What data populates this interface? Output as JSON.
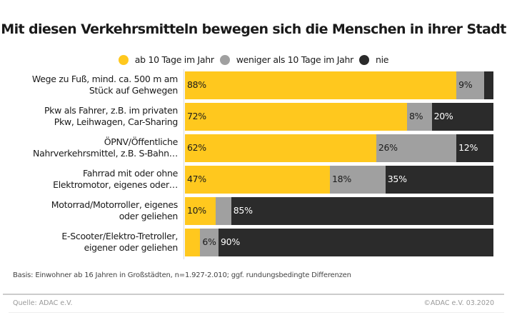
{
  "chart_data": {
    "type": "bar",
    "orientation": "horizontal",
    "stacked": true,
    "title": "Mit diesen Verkehrsmitteln bewegen sich die Menschen in ihrer Stadt",
    "xlabel": "",
    "ylabel": "",
    "xlim": [
      0,
      100
    ],
    "legend_position": "top-center",
    "categories": [
      "Wege zu Fuß, mind. ca. 500 m am Stück auf Gehwegen",
      "Pkw als Fahrer, z.B. im privaten Pkw, Leihwagen, Car-Sharing",
      "ÖPNV/Öffentliche Nahrverkehrsmittel, z.B. S-Bahn…",
      "Fahrrad mit oder ohne Elektromotor, eigenes oder…",
      "Motorrad/Motorroller, eigenes oder geliehen",
      "E-Scooter/Elektro-Tretroller, eigener oder geliehen"
    ],
    "category_lines": [
      [
        "Wege zu Fuß, mind. ca. 500 m am",
        "Stück auf Gehwegen"
      ],
      [
        "Pkw als Fahrer, z.B. im privaten",
        "Pkw, Leihwagen, Car-Sharing"
      ],
      [
        "ÖPNV/Öffentliche",
        "Nahrverkehrsmittel, z.B. S-Bahn…"
      ],
      [
        "Fahrrad mit oder ohne",
        "Elektromotor, eigenes oder…"
      ],
      [
        "Motorrad/Motorroller, eigenes",
        "oder geliehen"
      ],
      [
        "E-Scooter/Elektro-Tretroller,",
        "eigener oder geliehen"
      ]
    ],
    "series": [
      {
        "name": "ab 10 Tage im Jahr",
        "color": "#FFC81E",
        "label_color": "#1a1a1a",
        "values": [
          88,
          72,
          62,
          47,
          10,
          5
        ],
        "labels": [
          "88%",
          "72%",
          "62%",
          "47%",
          "10%",
          ""
        ]
      },
      {
        "name": "weniger als 10 Tage im Jahr",
        "color": "#A0A0A0",
        "label_color": "#1a1a1a",
        "values": [
          9,
          8,
          26,
          18,
          5,
          6
        ],
        "labels": [
          "9%",
          "8%",
          "26%",
          "18%",
          "",
          "6%"
        ]
      },
      {
        "name": "nie",
        "color": "#2B2B2B",
        "label_color": "#ffffff",
        "values": [
          3,
          20,
          12,
          35,
          85,
          90
        ],
        "labels": [
          "",
          "20%",
          "12%",
          "35%",
          "85%",
          "90%"
        ]
      }
    ]
  },
  "notes": {
    "basis": "Basis: Einwohner ab 16 Jahren in Großstädten, n=1.927-2.010; ggf. rundungsbedingte Differenzen",
    "source": "Quelle: ADAC e.V.",
    "copyright": "©ADAC e.V.  03.2020"
  }
}
